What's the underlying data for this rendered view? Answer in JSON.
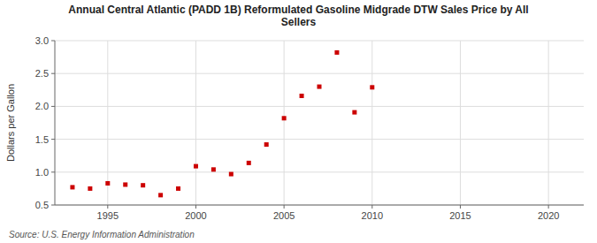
{
  "chart_data": {
    "type": "scatter",
    "title": "Annual Central Atlantic (PADD 1B) Reformulated Gasoline Midgrade DTW Sales Price by All\nSellers",
    "ylabel": "Dollars per Gallon",
    "source": "Source: U.S. Energy Information Administration",
    "x": [
      1993,
      1994,
      1995,
      1996,
      1997,
      1998,
      1999,
      2000,
      2001,
      2002,
      2003,
      2004,
      2005,
      2006,
      2007,
      2008,
      2009,
      2010
    ],
    "values": [
      0.77,
      0.75,
      0.83,
      0.81,
      0.8,
      0.65,
      0.75,
      1.09,
      1.04,
      0.97,
      1.14,
      1.42,
      1.82,
      2.16,
      2.3,
      2.82,
      1.91,
      2.29
    ],
    "color": "#cc0000",
    "marker": "square",
    "xlim": [
      1992,
      2022
    ],
    "ylim": [
      0.5,
      3.0
    ],
    "xticks": [
      1995,
      2000,
      2005,
      2010,
      2015,
      2020
    ],
    "yticks": [
      0.5,
      {
        "value": 1.0,
        "label": "1.0"
      },
      1.5,
      {
        "value": 2.0,
        "label": "2.0"
      },
      2.5,
      {
        "value": 3.0,
        "label": "3.0"
      }
    ],
    "grid": true
  }
}
